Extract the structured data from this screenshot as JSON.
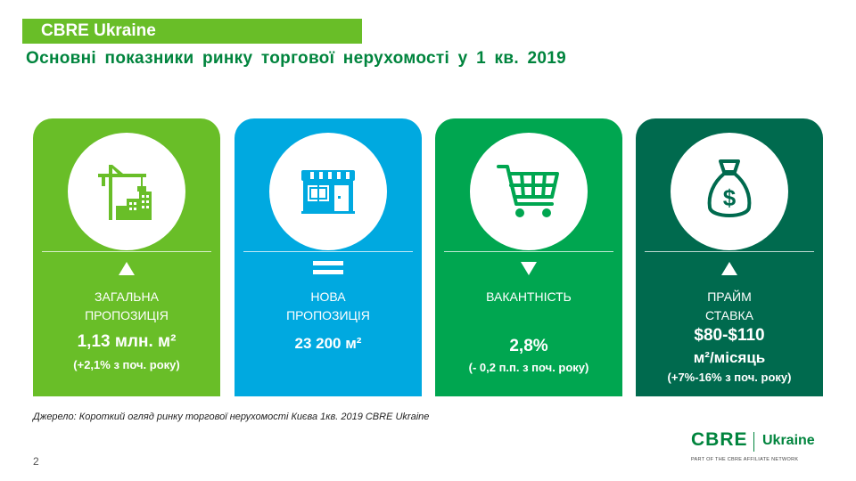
{
  "header": {
    "tag": "CBRE Ukraine",
    "title": "Основні показники ринку торгової нерухомості у 1 кв. 2019"
  },
  "cards": [
    {
      "label_l1": "ЗАГАЛЬНА",
      "label_l2": "ПРОПОЗИЦІЯ",
      "value": "1,13 млн. м²",
      "change": "(+2,1% з поч. року)",
      "indicator": "up-triangle",
      "icon": "construction-crane-icon",
      "color": "#69be28"
    },
    {
      "label_l1": "НОВА",
      "label_l2": "ПРОПОЗИЦІЯ",
      "value": "23 200 м²",
      "change": "",
      "indicator": "equals",
      "icon": "storefront-icon",
      "color": "#00a9e0"
    },
    {
      "label_l1": "ВАКАНТНІСТЬ",
      "label_l2": "",
      "value": "2,8%",
      "change": "(- 0,2 п.п. з поч. року)",
      "indicator": "down-triangle",
      "icon": "shopping-cart-icon",
      "color": "#00a650"
    },
    {
      "label_l1": "ПРАЙМ",
      "label_l2": "СТАВКА",
      "value": "$80-$110",
      "value_l2": "м²/місяць",
      "change": "(+7%-16% з поч. року)",
      "indicator": "up-triangle",
      "icon": "money-bag-icon",
      "color": "#006a4e"
    }
  ],
  "footer": {
    "source": "Джерело: Короткий огляд ринку торгової нерухомості Києва 1кв. 2019 CBRE Ukraine",
    "page": "2",
    "logo_main": "CBRE",
    "logo_sub": "Ukraine",
    "logo_tagline": "PART OF THE CBRE AFFILIATE NETWORK"
  }
}
